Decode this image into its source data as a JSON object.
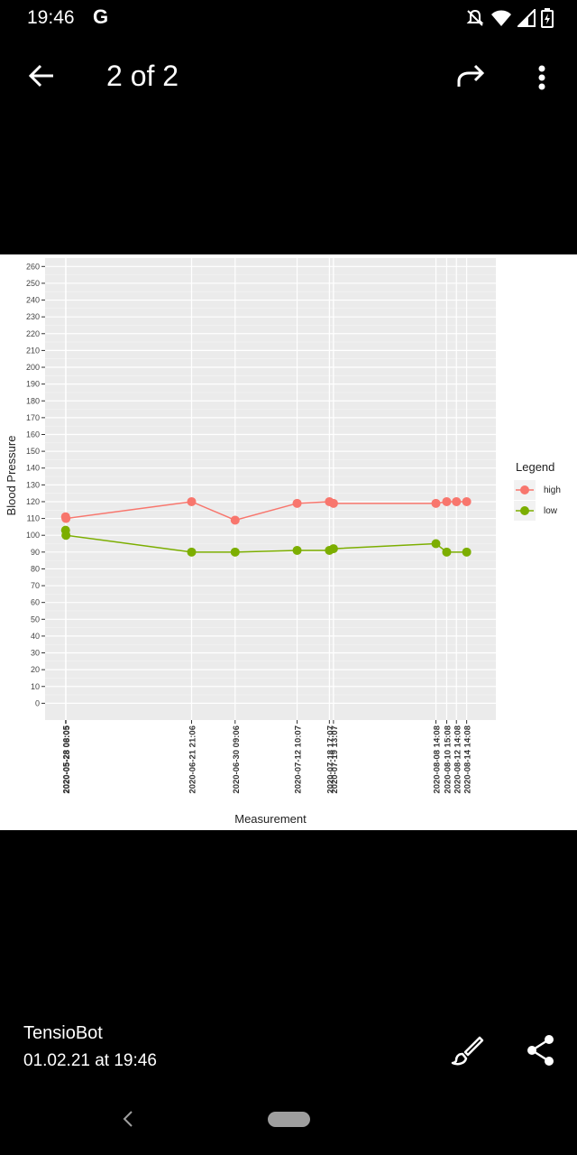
{
  "status_bar": {
    "time": "19:46",
    "notification_icon": "google-g",
    "icons": [
      "notifications-off-icon",
      "wifi-icon",
      "signal-icon",
      "battery-icon"
    ]
  },
  "app_bar": {
    "counter": "2 of 2",
    "back_icon": "arrow-back-icon",
    "forward_icon": "share-arrow-icon",
    "more_icon": "more-vert-icon"
  },
  "footer": {
    "sender": "TensioBot",
    "timestamp": "01.02.21 at 19:46",
    "edit_icon": "brush-icon",
    "share_icon": "share-icon"
  },
  "chart_data": {
    "type": "line",
    "xlabel": "Measurement",
    "ylabel": "Blood Pressure",
    "ylim": [
      -10,
      265
    ],
    "yticks": [
      0,
      10,
      20,
      30,
      40,
      50,
      60,
      70,
      80,
      90,
      100,
      110,
      120,
      130,
      140,
      150,
      160,
      170,
      180,
      190,
      200,
      210,
      220,
      230,
      240,
      250,
      260
    ],
    "x": [
      "2020-05-28 06:05",
      "2020-05-28 08:05",
      "2020-06-21 21:06",
      "2020-06-30 09:06",
      "2020-07-12 10:07",
      "2020-07-18 17:07",
      "2020-07-19 13:07",
      "2020-08-08 14:08",
      "2020-08-10 15:08",
      "2020-08-12 14:08",
      "2020-08-14 14:08"
    ],
    "x_days": [
      0,
      0.08,
      24.6,
      33.1,
      45.2,
      51.5,
      52.3,
      72.3,
      74.4,
      76.3,
      78.3
    ],
    "xlim_days": [
      -4,
      84
    ],
    "series": [
      {
        "name": "high",
        "color": "#F8766D",
        "values": [
          111,
          110,
          120,
          109,
          119,
          120,
          119,
          119,
          120,
          120,
          120
        ]
      },
      {
        "name": "low",
        "color": "#7CAE00",
        "values": [
          103,
          100,
          90,
          90,
          91,
          91,
          92,
          95,
          90,
          null,
          90
        ]
      }
    ],
    "legend": {
      "title": "Legend",
      "position": "right",
      "entries": [
        "high",
        "low"
      ]
    },
    "grid": true
  }
}
